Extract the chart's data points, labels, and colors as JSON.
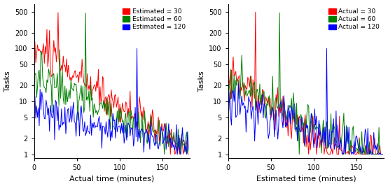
{
  "colors": [
    "red",
    "green",
    "blue"
  ],
  "left_legend": [
    "Estimated = 30",
    "Estimated = 60",
    "Estimated = 120"
  ],
  "right_legend": [
    "Actual = 30",
    "Actual = 60",
    "Actual = 120"
  ],
  "left_xlabel": "Actual time (minutes)",
  "right_xlabel": "Estimated time (minutes)",
  "ylabel": "Tasks",
  "ylim": [
    0.85,
    700
  ],
  "xlim": [
    0,
    182
  ],
  "yticks": [
    1,
    2,
    5,
    10,
    20,
    50,
    100,
    200,
    500
  ],
  "ytick_labels": [
    "1",
    "2",
    "5",
    "10",
    "20",
    "50",
    "100",
    "200",
    "500"
  ],
  "xticks": [
    0,
    50,
    100,
    150
  ],
  "background": "#ffffff",
  "linewidth": 0.7
}
